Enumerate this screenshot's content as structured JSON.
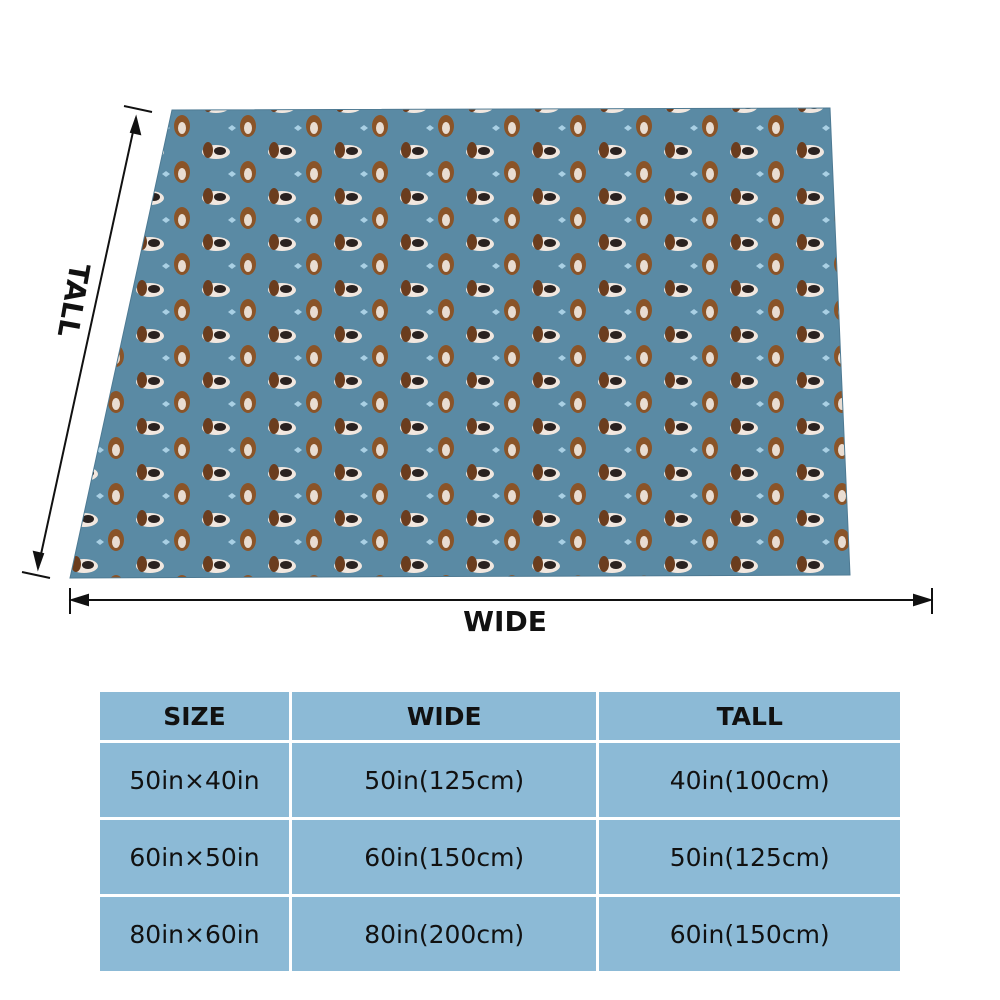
{
  "diagram": {
    "tall_label": "TALL",
    "wide_label": "WIDE"
  },
  "table": {
    "header": [
      "SIZE",
      "WIDE",
      "TALL"
    ],
    "rows": [
      [
        "50in×40in",
        "50in(125cm)",
        "40in(100cm)"
      ],
      [
        "60in×50in",
        "60in(150cm)",
        "50in(125cm)"
      ],
      [
        "80in×60in",
        "80in(200cm)",
        "60in(150cm)"
      ]
    ]
  }
}
